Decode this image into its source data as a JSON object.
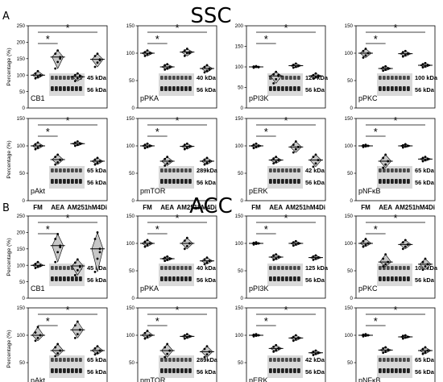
{
  "figure": {
    "sections": [
      {
        "letter": "A",
        "title": "SSC"
      },
      {
        "letter": "B",
        "title": "ACC"
      }
    ],
    "ylabel": "Percentage (%)",
    "categories": [
      "FM",
      "AEA",
      "AM251",
      "hM4Di"
    ],
    "significance_mark": "*"
  },
  "chart_data": [
    {
      "type": "scatter",
      "section": "SSC",
      "label": "CB1",
      "bands": [
        "45 kDa",
        "56 kDa"
      ],
      "ylim": [
        0,
        250
      ],
      "yticks": [
        0,
        50,
        100,
        150,
        200,
        250
      ],
      "categories": [
        "FM",
        "AEA",
        "AM251",
        "hM4Di"
      ],
      "values": [
        100,
        155,
        95,
        148
      ],
      "points": [
        [
          90,
          95,
          100,
          105,
          112,
          98
        ],
        [
          120,
          140,
          155,
          165,
          175,
          150
        ],
        [
          82,
          90,
          95,
          100,
          105,
          98
        ],
        [
          125,
          138,
          148,
          158,
          165,
          145
        ]
      ],
      "violin": true
    },
    {
      "type": "scatter",
      "section": "SSC",
      "label": "pPKA",
      "bands": [
        "40 kDa",
        "56 kDa"
      ],
      "ylim": [
        0,
        150
      ],
      "yticks": [
        0,
        50,
        100,
        150
      ],
      "categories": [
        "FM",
        "AEA",
        "AM251",
        "hM4Di"
      ],
      "values": [
        100,
        75,
        102,
        72
      ],
      "points": [
        [
          95,
          98,
          100,
          102,
          105,
          100
        ],
        [
          70,
          72,
          75,
          78,
          80,
          74
        ],
        [
          95,
          100,
          102,
          105,
          108,
          100
        ],
        [
          65,
          68,
          72,
          75,
          78,
          70
        ]
      ],
      "violin": true
    },
    {
      "type": "scatter",
      "section": "SSC",
      "label": "pPI3K",
      "bands": [
        "125 kDa",
        "56 kDa"
      ],
      "ylim": [
        0,
        200
      ],
      "yticks": [
        0,
        50,
        100,
        150,
        200
      ],
      "categories": [
        "FM",
        "AEA",
        "AM251",
        "hM4Di"
      ],
      "values": [
        100,
        78,
        103,
        78
      ],
      "points": [
        [
          98,
          100,
          100,
          101,
          102,
          99
        ],
        [
          60,
          70,
          78,
          82,
          88,
          80
        ],
        [
          98,
          100,
          103,
          105,
          108,
          102
        ],
        [
          72,
          75,
          78,
          80,
          84,
          77
        ]
      ],
      "violin": true
    },
    {
      "type": "scatter",
      "section": "SSC",
      "label": "pPKC",
      "bands": [
        "100 kDa",
        "56 kDa"
      ],
      "ylim": [
        0,
        150
      ],
      "yticks": [
        0,
        50,
        100,
        150
      ],
      "categories": [
        "FM",
        "AEA",
        "AM251",
        "hM4Di"
      ],
      "values": [
        100,
        72,
        99,
        78
      ],
      "points": [
        [
          92,
          96,
          100,
          104,
          108,
          100
        ],
        [
          68,
          70,
          72,
          74,
          76,
          72
        ],
        [
          94,
          97,
          99,
          102,
          104,
          99
        ],
        [
          74,
          76,
          78,
          80,
          82,
          78
        ]
      ],
      "violin": true
    },
    {
      "type": "scatter",
      "section": "SSC",
      "label": "pAkt",
      "bands": [
        "65 kDa",
        "56 kDa"
      ],
      "ylim": [
        0,
        150
      ],
      "yticks": [
        0,
        50,
        100,
        150
      ],
      "categories": [
        "FM",
        "AEA",
        "AM251",
        "hM4Di"
      ],
      "values": [
        100,
        75,
        104,
        72
      ],
      "points": [
        [
          94,
          97,
          100,
          103,
          106,
          100
        ],
        [
          66,
          70,
          75,
          80,
          84,
          74
        ],
        [
          100,
          102,
          104,
          106,
          108,
          104
        ],
        [
          66,
          69,
          72,
          75,
          78,
          72
        ]
      ],
      "violin": true
    },
    {
      "type": "scatter",
      "section": "SSC",
      "label": "pmTOR",
      "bands": [
        "289kDa",
        "56 kDa"
      ],
      "ylim": [
        0,
        150
      ],
      "yticks": [
        0,
        50,
        100,
        150
      ],
      "categories": [
        "FM",
        "AEA",
        "AM251",
        "hM4Di"
      ],
      "values": [
        100,
        72,
        99,
        72
      ],
      "points": [
        [
          96,
          98,
          100,
          102,
          104,
          100
        ],
        [
          64,
          68,
          72,
          76,
          80,
          72
        ],
        [
          94,
          97,
          99,
          102,
          104,
          99
        ],
        [
          66,
          69,
          72,
          75,
          78,
          72
        ]
      ],
      "violin": true
    },
    {
      "type": "scatter",
      "section": "SSC",
      "label": "pERK",
      "bands": [
        "42 kDa",
        "56 kDa"
      ],
      "ylim": [
        0,
        150
      ],
      "yticks": [
        0,
        50,
        100,
        150
      ],
      "categories": [
        "FM",
        "AEA",
        "AM251",
        "hM4Di"
      ],
      "values": [
        100,
        74,
        98,
        74
      ],
      "points": [
        [
          96,
          98,
          100,
          102,
          104,
          100
        ],
        [
          68,
          71,
          74,
          77,
          80,
          74
        ],
        [
          88,
          94,
          98,
          102,
          108,
          98
        ],
        [
          62,
          68,
          74,
          80,
          84,
          74
        ]
      ],
      "violin": true
    },
    {
      "type": "scatter",
      "section": "SSC",
      "label": "pNFκB",
      "bands": [
        "65 kDa",
        "56 kDa"
      ],
      "ylim": [
        0,
        150
      ],
      "yticks": [
        0,
        50,
        100,
        150
      ],
      "categories": [
        "FM",
        "AEA",
        "AM251",
        "hM4Di"
      ],
      "values": [
        100,
        72,
        100,
        76
      ],
      "points": [
        [
          98,
          99,
          100,
          101,
          102,
          100
        ],
        [
          60,
          66,
          72,
          78,
          84,
          72
        ],
        [
          97,
          99,
          100,
          101,
          103,
          100
        ],
        [
          72,
          74,
          76,
          78,
          80,
          76
        ]
      ],
      "violin": true
    },
    {
      "type": "scatter",
      "section": "ACC",
      "label": "CB1",
      "bands": [
        "45 kDa",
        "56 kDa"
      ],
      "ylim": [
        0,
        250
      ],
      "yticks": [
        0,
        50,
        100,
        150,
        200,
        250
      ],
      "categories": [
        "FM",
        "AEA",
        "AM251",
        "hM4Di"
      ],
      "values": [
        100,
        160,
        98,
        150
      ],
      "points": [
        [
          92,
          96,
          100,
          104,
          110,
          98
        ],
        [
          110,
          140,
          160,
          180,
          195,
          155
        ],
        [
          70,
          85,
          98,
          108,
          118,
          95
        ],
        [
          80,
          120,
          150,
          180,
          200,
          140
        ]
      ],
      "violin": true
    },
    {
      "type": "scatter",
      "section": "ACC",
      "label": "pPKA",
      "bands": [
        "40 kDa",
        "56 kDa"
      ],
      "ylim": [
        0,
        150
      ],
      "yticks": [
        0,
        50,
        100,
        150
      ],
      "categories": [
        "FM",
        "AEA",
        "AM251",
        "hM4Di"
      ],
      "values": [
        100,
        72,
        100,
        68
      ],
      "points": [
        [
          94,
          97,
          100,
          103,
          106,
          100
        ],
        [
          68,
          70,
          72,
          74,
          76,
          72
        ],
        [
          90,
          95,
          100,
          105,
          110,
          100
        ],
        [
          62,
          65,
          68,
          71,
          74,
          68
        ]
      ],
      "violin": true
    },
    {
      "type": "scatter",
      "section": "ACC",
      "label": "pPI3K",
      "bands": [
        "125 kDa",
        "56 kDa"
      ],
      "ylim": [
        0,
        150
      ],
      "yticks": [
        0,
        50,
        100,
        150
      ],
      "categories": [
        "FM",
        "AEA",
        "AM251",
        "hM4Di"
      ],
      "values": [
        100,
        75,
        100,
        74
      ],
      "points": [
        [
          98,
          99,
          100,
          101,
          102,
          100
        ],
        [
          70,
          72,
          75,
          78,
          80,
          75
        ],
        [
          96,
          98,
          100,
          102,
          104,
          100
        ],
        [
          70,
          72,
          74,
          76,
          78,
          74
        ]
      ],
      "violin": true
    },
    {
      "type": "scatter",
      "section": "ACC",
      "label": "pPKC",
      "bands": [
        "100 kDa",
        "56 kDa"
      ],
      "ylim": [
        0,
        150
      ],
      "yticks": [
        0,
        50,
        100,
        150
      ],
      "categories": [
        "FM",
        "AEA",
        "AM251",
        "hM4Di"
      ],
      "values": [
        100,
        66,
        98,
        62
      ],
      "points": [
        [
          94,
          97,
          100,
          104,
          108,
          100
        ],
        [
          58,
          62,
          66,
          72,
          80,
          66
        ],
        [
          90,
          94,
          98,
          102,
          106,
          98
        ],
        [
          52,
          58,
          62,
          66,
          72,
          62
        ]
      ],
      "violin": true
    },
    {
      "type": "scatter",
      "section": "ACC",
      "label": "pAkt",
      "bands": [
        "65 kDa",
        "56 kDa"
      ],
      "ylim": [
        0,
        150
      ],
      "yticks": [
        0,
        50,
        100,
        150
      ],
      "categories": [
        "FM",
        "AEA",
        "AM251",
        "hM4Di"
      ],
      "values": [
        100,
        72,
        110,
        72
      ],
      "points": [
        [
          90,
          95,
          100,
          105,
          115,
          100
        ],
        [
          62,
          67,
          72,
          78,
          84,
          72
        ],
        [
          95,
          102,
          110,
          118,
          125,
          110
        ],
        [
          65,
          68,
          72,
          76,
          80,
          72
        ]
      ],
      "violin": true
    },
    {
      "type": "scatter",
      "section": "ACC",
      "label": "pmTOR",
      "bands": [
        "289kDa",
        "56 kDa"
      ],
      "ylim": [
        0,
        150
      ],
      "yticks": [
        0,
        50,
        100,
        150
      ],
      "categories": [
        "FM",
        "AEA",
        "AM251",
        "hM4Di"
      ],
      "values": [
        100,
        72,
        98,
        70
      ],
      "points": [
        [
          94,
          97,
          100,
          104,
          108,
          100
        ],
        [
          60,
          66,
          72,
          78,
          84,
          72
        ],
        [
          94,
          96,
          98,
          100,
          102,
          98
        ],
        [
          60,
          65,
          70,
          75,
          80,
          70
        ]
      ],
      "violin": true
    },
    {
      "type": "scatter",
      "section": "ACC",
      "label": "pERK",
      "bands": [
        "42 kDa",
        "56 kDa"
      ],
      "ylim": [
        0,
        150
      ],
      "yticks": [
        0,
        50,
        100,
        150
      ],
      "categories": [
        "FM",
        "AEA",
        "AM251",
        "hM4Di"
      ],
      "values": [
        100,
        76,
        95,
        68
      ],
      "points": [
        [
          98,
          99,
          100,
          101,
          102,
          100
        ],
        [
          70,
          73,
          76,
          79,
          82,
          76
        ],
        [
          90,
          93,
          95,
          97,
          100,
          95
        ],
        [
          64,
          66,
          68,
          70,
          72,
          68
        ]
      ],
      "violin": true
    },
    {
      "type": "scatter",
      "section": "ACC",
      "label": "pNFκB",
      "bands": [
        "65 kDa",
        "56 kDa"
      ],
      "ylim": [
        0,
        150
      ],
      "yticks": [
        0,
        50,
        100,
        150
      ],
      "categories": [
        "FM",
        "AEA",
        "AM251",
        "hM4Di"
      ],
      "values": [
        100,
        73,
        97,
        72
      ],
      "points": [
        [
          98,
          99,
          100,
          101,
          102,
          100
        ],
        [
          68,
          70,
          73,
          76,
          78,
          73
        ],
        [
          94,
          96,
          97,
          99,
          100,
          97
        ],
        [
          66,
          69,
          72,
          75,
          78,
          72
        ]
      ],
      "violin": true
    }
  ]
}
